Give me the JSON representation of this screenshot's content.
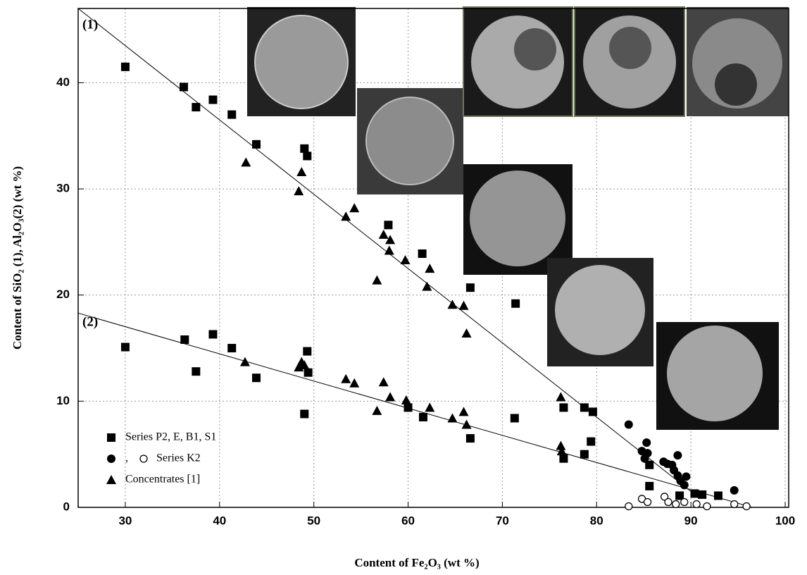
{
  "chart_data": {
    "type": "scatter",
    "xlabel": "Content of Fe₂O₃ (wt %)",
    "ylabel": "Content of  SiO₂ (1),  Al₂O₃(2) (wt  %)",
    "xlim": [
      25,
      100
    ],
    "ylim": [
      0,
      47
    ],
    "xticks": [
      30,
      40,
      50,
      60,
      70,
      80,
      90,
      100
    ],
    "yticks": [
      0,
      10,
      20,
      30,
      40
    ],
    "grid": true,
    "legend": "lower left",
    "legend_separator": ",",
    "fit_lines": [
      {
        "label": "(1)",
        "x": [
          25,
          90
        ],
        "y": [
          47,
          1.5
        ]
      },
      {
        "label": "(2)",
        "x": [
          25,
          96.5
        ],
        "y": [
          18.3,
          0
        ]
      }
    ],
    "series": [
      {
        "name": "Series P2, E, B1, S1",
        "marker": "square",
        "color": "#000000",
        "x": [
          30,
          36.2,
          37.5,
          39.3,
          41.3,
          43.9,
          49,
          49.3,
          57.9,
          61.5,
          66.6,
          71.4,
          30,
          36.3,
          37.5,
          39.3,
          41.3,
          43.9,
          49.3,
          49.4,
          49,
          60,
          61.6,
          66.6,
          71.3,
          76.5,
          76.5,
          78.7,
          79.6,
          79.4,
          78.7,
          85.6,
          85.6,
          91.2,
          90.4,
          92.9,
          88.8
        ],
        "y": [
          41.5,
          39.6,
          37.7,
          38.4,
          37.0,
          34.2,
          33.8,
          33.1,
          26.6,
          23.9,
          20.7,
          19.2,
          15.1,
          15.8,
          12.8,
          16.3,
          15.0,
          12.2,
          14.7,
          12.7,
          8.8,
          9.4,
          8.5,
          6.5,
          8.4,
          9.4,
          4.6,
          9.4,
          9.0,
          6.2,
          5.0,
          2.0,
          4.0,
          1.2,
          1.3,
          1.1,
          1.1
        ]
      },
      {
        "name": "Series K2",
        "marker": "circle",
        "color": "#000000",
        "x": [
          83.4,
          84.8,
          85.3,
          85.4,
          85.1,
          87.1,
          87.5,
          88.0,
          88.2,
          88.6,
          88.9,
          88.6,
          89.5,
          94.6,
          89.3
        ],
        "y": [
          7.8,
          5.3,
          6.1,
          5.1,
          4.6,
          4.3,
          4.1,
          4.0,
          3.5,
          3.0,
          2.5,
          4.9,
          2.9,
          1.6,
          2.1
        ]
      },
      {
        "marker": "open-circle",
        "color": "#000000",
        "x": [
          83.4,
          84.8,
          85.4,
          87.2,
          87.6,
          88.4,
          89.3,
          90.6,
          91.7,
          94.6,
          95.9
        ],
        "y": [
          0.1,
          0.8,
          0.5,
          1.0,
          0.5,
          0.3,
          0.5,
          0.3,
          0.1,
          0.3,
          0.1
        ]
      },
      {
        "name": "Concentrates [1]",
        "marker": "triangle",
        "color": "#000000",
        "x": [
          42.8,
          48.7,
          48.4,
          53.4,
          54.3,
          57.4,
          58.1,
          58,
          56.7,
          59.7,
          62.3,
          62,
          64.7,
          65.9,
          66.2,
          42.7,
          48.4,
          48.7,
          49.0,
          53.4,
          54.3,
          57.4,
          58.1,
          56.7,
          59.8,
          62.3,
          64.7,
          65.9,
          66.2,
          76.2,
          76.2,
          76.3
        ],
        "y": [
          32.5,
          31.6,
          29.8,
          27.4,
          28.2,
          25.7,
          25.2,
          24.2,
          21.4,
          23.3,
          22.5,
          20.8,
          19.1,
          19.0,
          16.4,
          13.7,
          13.2,
          13.7,
          13.4,
          12.1,
          11.7,
          11.8,
          10.4,
          9.1,
          10.1,
          9.4,
          8.4,
          9.0,
          7.8,
          10.4,
          5.8,
          5.3
        ]
      }
    ]
  }
}
